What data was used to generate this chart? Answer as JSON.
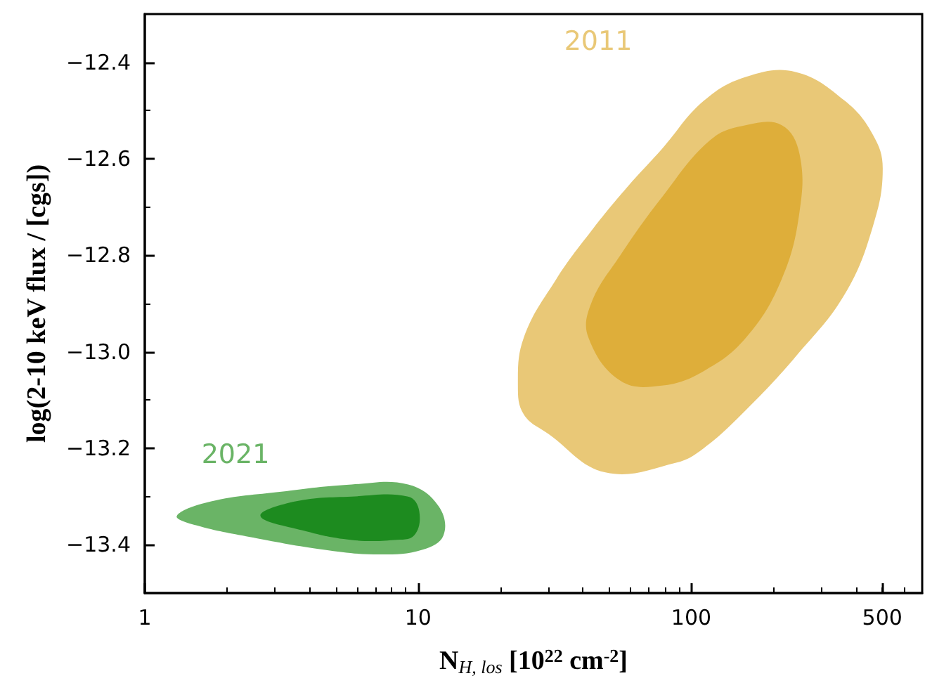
{
  "chart_data": {
    "type": "area",
    "xlabel": "N$_{H, los}$ [10$^{22}$ cm$^{-2}$]",
    "ylabel": "log(2-10 keV flux / [cgs])",
    "log": "x",
    "xlim": [
      1,
      700
    ],
    "xticks": [
      1,
      10,
      100,
      500
    ],
    "ylim": [
      -13.5,
      -12.3
    ],
    "yticks": [
      -13.4,
      -13.2,
      {
        "value": -13,
        "label": "−13.0"
      },
      -12.8,
      -12.6,
      -12.4
    ],
    "grid": false,
    "legend": false,
    "series": [
      {
        "name": "2011",
        "color": "#e9c877",
        "x": [
          23.2,
          24.4,
          32,
          43,
          58,
          78,
          111,
          159,
          241,
          365,
          462,
          502,
          462,
          365,
          241,
          159,
          111,
          88,
          48.5,
          30,
          24.4
        ],
        "values": [
          -13.07,
          -12.97,
          -12.85,
          -12.75,
          -12.66,
          -12.58,
          -12.48,
          -12.43,
          -12.42,
          -12.48,
          -12.55,
          -12.62,
          -12.74,
          -12.88,
          -13.01,
          -13.12,
          -13.2,
          -13.23,
          -13.25,
          -13.17,
          -13.13
        ]
      },
      {
        "color": "#deae3a",
        "x": [
          42,
          43,
          55,
          78,
          118,
          159,
          214,
          249,
          249,
          214,
          159,
          111,
          78,
          55
        ],
        "values": [
          -12.97,
          -12.9,
          -12.8,
          -12.68,
          -12.56,
          -12.53,
          -12.53,
          -12.59,
          -12.71,
          -12.85,
          -12.97,
          -13.04,
          -13.07,
          -13.06
        ]
      },
      {
        "name": "2021",
        "color": "#6ab466",
        "x": [
          1.31,
          1.75,
          3.16,
          5.72,
          9.2,
          11.9,
          12.4,
          10.4,
          7.26,
          4.51,
          2.49,
          1.55
        ],
        "values": [
          -13.34,
          -13.31,
          -13.29,
          -13.275,
          -13.275,
          -13.32,
          -13.38,
          -13.41,
          -13.42,
          -13.41,
          -13.385,
          -13.36
        ]
      },
      {
        "color": "#1d8b1f",
        "x": [
          2.65,
          3.56,
          5.72,
          9.2,
          10.1,
          9.7,
          8.17,
          5.72,
          3.78
        ],
        "values": [
          -13.34,
          -13.31,
          -13.3,
          -13.3,
          -13.33,
          -13.38,
          -13.39,
          -13.39,
          -13.37
        ]
      }
    ]
  }
}
